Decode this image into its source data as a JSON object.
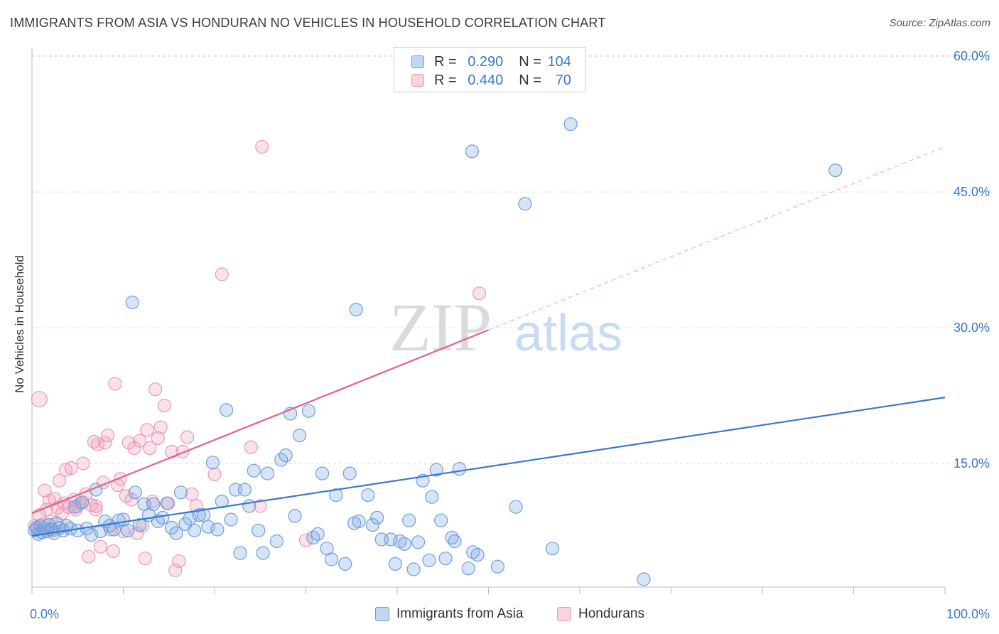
{
  "title": "IMMIGRANTS FROM ASIA VS HONDURAN NO VEHICLES IN HOUSEHOLD CORRELATION CHART",
  "source": "Source: ZipAtlas.com",
  "watermark": {
    "zip": "ZIP",
    "atlas": "atlas"
  },
  "colors": {
    "blue": "#3a78c9",
    "blue_fill": "rgba(122,166,226,0.30)",
    "blue_stroke": "#6e9fdc",
    "pink": "#e0628a",
    "pink_fill": "rgba(240,160,185,0.30)",
    "pink_stroke": "#eb9ab3",
    "grid": "#dddddd",
    "tick_label": "#3a78c9"
  },
  "legend": {
    "rows": [
      {
        "r_label": "R =",
        "r_value": "0.290",
        "n_label": "N =",
        "n_value": "104",
        "series": "blue"
      },
      {
        "r_label": "R =",
        "r_value": "0.440",
        "n_label": "N =",
        "n_value": "70",
        "series": "pink"
      }
    ],
    "bottom": [
      {
        "label": "Immigrants from Asia",
        "series": "blue"
      },
      {
        "label": "Hondurans",
        "series": "pink"
      }
    ]
  },
  "chart_data": {
    "type": "scatter",
    "title": "IMMIGRANTS FROM ASIA VS HONDURAN NO VEHICLES IN HOUSEHOLD CORRELATION CHART",
    "xlabel": "",
    "ylabel": "No Vehicles in Household",
    "xlim": [
      0,
      100
    ],
    "ylim": [
      0,
      63
    ],
    "x_tick_labels": [
      "0.0%",
      "100.0%"
    ],
    "y_ticks": [
      15,
      30,
      45,
      60
    ],
    "y_tick_labels": [
      "15.0%",
      "30.0%",
      "45.0%",
      "60.0%"
    ],
    "grid": true,
    "legend_position": "top-center",
    "series": [
      {
        "name": "Immigrants from Asia",
        "color": "blue",
        "R": 0.29,
        "N": 104,
        "trend": {
          "x": [
            0,
            100
          ],
          "y": [
            7.0,
            22.3
          ],
          "solid_until": 100
        },
        "points": [
          [
            0.3,
            7.6
          ],
          [
            0.5,
            7.9
          ],
          [
            0.7,
            7.2
          ],
          [
            0.9,
            8.1
          ],
          [
            1.1,
            7.4
          ],
          [
            1.3,
            7.8
          ],
          [
            1.6,
            7.5
          ],
          [
            1.9,
            8.2
          ],
          [
            2.1,
            7.7
          ],
          [
            2.4,
            7.3
          ],
          [
            2.7,
            8.4
          ],
          [
            3.0,
            7.9
          ],
          [
            3.4,
            7.6
          ],
          [
            3.8,
            8.1
          ],
          [
            4.2,
            7.8
          ],
          [
            4.7,
            10.2
          ],
          [
            5.0,
            7.6
          ],
          [
            5.5,
            10.7
          ],
          [
            6.0,
            7.8
          ],
          [
            6.5,
            7.1
          ],
          [
            7.0,
            12.1
          ],
          [
            7.5,
            7.5
          ],
          [
            8.0,
            8.6
          ],
          [
            8.5,
            8.1
          ],
          [
            9.0,
            7.7
          ],
          [
            9.5,
            8.7
          ],
          [
            10.0,
            8.8
          ],
          [
            10.5,
            7.6
          ],
          [
            11.0,
            32.8
          ],
          [
            11.3,
            11.8
          ],
          [
            11.8,
            8.2
          ],
          [
            12.3,
            10.5
          ],
          [
            12.8,
            9.3
          ],
          [
            13.3,
            10.5
          ],
          [
            13.8,
            8.6
          ],
          [
            14.3,
            9.0
          ],
          [
            14.8,
            10.6
          ],
          [
            15.3,
            7.9
          ],
          [
            15.8,
            7.3
          ],
          [
            16.3,
            11.8
          ],
          [
            16.8,
            8.3
          ],
          [
            17.3,
            8.9
          ],
          [
            17.8,
            7.6
          ],
          [
            18.3,
            9.3
          ],
          [
            18.8,
            9.3
          ],
          [
            19.3,
            8.0
          ],
          [
            19.8,
            15.1
          ],
          [
            20.3,
            7.7
          ],
          [
            20.8,
            10.8
          ],
          [
            21.3,
            20.9
          ],
          [
            21.8,
            8.8
          ],
          [
            22.3,
            12.1
          ],
          [
            22.8,
            5.1
          ],
          [
            23.3,
            12.1
          ],
          [
            23.8,
            10.3
          ],
          [
            24.3,
            14.2
          ],
          [
            24.8,
            7.6
          ],
          [
            25.3,
            5.1
          ],
          [
            25.8,
            13.9
          ],
          [
            26.8,
            6.4
          ],
          [
            27.3,
            15.4
          ],
          [
            27.8,
            15.9
          ],
          [
            28.3,
            20.5
          ],
          [
            28.8,
            9.2
          ],
          [
            29.3,
            18.1
          ],
          [
            30.3,
            20.8
          ],
          [
            30.8,
            6.8
          ],
          [
            31.3,
            7.2
          ],
          [
            31.8,
            13.9
          ],
          [
            32.3,
            5.6
          ],
          [
            32.8,
            4.4
          ],
          [
            33.3,
            11.5
          ],
          [
            34.3,
            3.9
          ],
          [
            34.8,
            13.9
          ],
          [
            35.3,
            8.4
          ],
          [
            35.5,
            32.0
          ],
          [
            35.8,
            8.6
          ],
          [
            36.8,
            11.5
          ],
          [
            37.3,
            8.2
          ],
          [
            37.8,
            9.0
          ],
          [
            38.3,
            6.6
          ],
          [
            39.8,
            3.9
          ],
          [
            39.3,
            6.6
          ],
          [
            40.3,
            6.4
          ],
          [
            40.8,
            6.1
          ],
          [
            41.3,
            8.7
          ],
          [
            41.8,
            3.3
          ],
          [
            42.3,
            6.3
          ],
          [
            42.8,
            13.1
          ],
          [
            43.5,
            4.3
          ],
          [
            43.8,
            11.3
          ],
          [
            44.3,
            14.3
          ],
          [
            44.8,
            8.7
          ],
          [
            45.3,
            4.5
          ],
          [
            46.0,
            6.8
          ],
          [
            46.3,
            6.4
          ],
          [
            46.8,
            14.4
          ],
          [
            47.8,
            3.4
          ],
          [
            48.3,
            5.2
          ],
          [
            48.8,
            4.9
          ],
          [
            48.2,
            49.5
          ],
          [
            51.0,
            3.6
          ],
          [
            53.0,
            10.2
          ],
          [
            54.0,
            43.7
          ],
          [
            57.0,
            5.6
          ],
          [
            59.0,
            52.5
          ],
          [
            67.0,
            2.2
          ],
          [
            88.0,
            47.4
          ]
        ]
      },
      {
        "name": "Hondurans",
        "color": "pink",
        "R": 0.44,
        "N": 70,
        "trend": {
          "x": [
            0,
            100
          ],
          "y": [
            9.5,
            50.0
          ],
          "solid_until": 50
        },
        "points": [
          [
            0.3,
            8.1
          ],
          [
            0.5,
            7.7
          ],
          [
            0.8,
            9.3
          ],
          [
            0.8,
            22.1
          ],
          [
            1.2,
            8.3
          ],
          [
            1.4,
            12.0
          ],
          [
            1.6,
            9.9
          ],
          [
            1.9,
            10.9
          ],
          [
            2.1,
            8.6
          ],
          [
            2.3,
            7.6
          ],
          [
            2.5,
            11.1
          ],
          [
            2.8,
            10.1
          ],
          [
            3.0,
            13.1
          ],
          [
            3.3,
            9.5
          ],
          [
            3.5,
            10.6
          ],
          [
            3.7,
            14.3
          ],
          [
            4.0,
            10.2
          ],
          [
            4.3,
            14.5
          ],
          [
            4.6,
            11.0
          ],
          [
            4.8,
            9.9
          ],
          [
            5.0,
            10.3
          ],
          [
            5.3,
            10.6
          ],
          [
            5.6,
            15.0
          ],
          [
            5.9,
            11.6
          ],
          [
            6.2,
            4.7
          ],
          [
            6.5,
            10.4
          ],
          [
            6.8,
            17.4
          ],
          [
            7.0,
            9.9
          ],
          [
            7.2,
            17.1
          ],
          [
            7.5,
            5.8
          ],
          [
            7.8,
            12.9
          ],
          [
            8.0,
            17.3
          ],
          [
            8.3,
            18.1
          ],
          [
            8.6,
            7.7
          ],
          [
            8.9,
            5.3
          ],
          [
            9.1,
            23.8
          ],
          [
            9.4,
            12.6
          ],
          [
            9.7,
            13.3
          ],
          [
            10.0,
            7.5
          ],
          [
            10.3,
            11.4
          ],
          [
            10.6,
            17.3
          ],
          [
            10.9,
            11.0
          ],
          [
            11.2,
            16.7
          ],
          [
            11.5,
            7.3
          ],
          [
            11.8,
            17.5
          ],
          [
            12.1,
            8.1
          ],
          [
            12.4,
            4.5
          ],
          [
            12.6,
            18.7
          ],
          [
            12.9,
            16.7
          ],
          [
            13.2,
            10.8
          ],
          [
            13.5,
            23.2
          ],
          [
            13.8,
            17.8
          ],
          [
            14.1,
            19.0
          ],
          [
            14.5,
            21.4
          ],
          [
            14.9,
            10.6
          ],
          [
            15.3,
            16.3
          ],
          [
            15.7,
            3.2
          ],
          [
            16.1,
            4.2
          ],
          [
            16.5,
            16.3
          ],
          [
            17.0,
            17.9
          ],
          [
            17.5,
            11.6
          ],
          [
            18.0,
            10.3
          ],
          [
            20.0,
            13.8
          ],
          [
            20.8,
            35.9
          ],
          [
            24.0,
            16.8
          ],
          [
            25.0,
            10.3
          ],
          [
            25.2,
            50.0
          ],
          [
            30.0,
            6.5
          ],
          [
            49.0,
            33.8
          ],
          [
            7.0,
            10.3
          ]
        ]
      }
    ]
  }
}
